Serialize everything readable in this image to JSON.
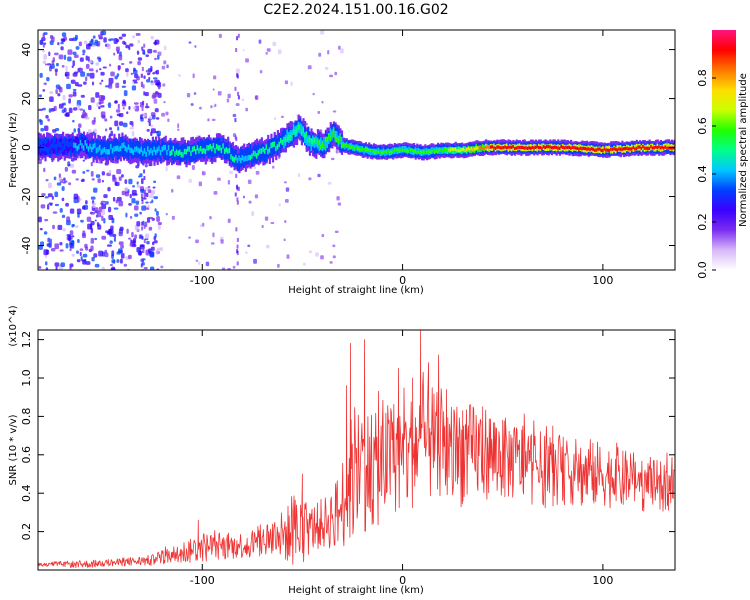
{
  "figure_title": "C2E2.2024.151.00.16.G02",
  "colors": {
    "snr_line": "#ee3333",
    "axis": "#000000",
    "background": "#ffffff"
  },
  "chart_data": [
    {
      "type": "heatmap",
      "xlabel": "Height of straight line (km)",
      "ylabel": "Frequency (Hz)",
      "xlim": [
        -182,
        136
      ],
      "ylim": [
        -50,
        48
      ],
      "x_ticks": [
        -100,
        0,
        100
      ],
      "x_tick_labels": [
        "-100",
        "0",
        "100"
      ],
      "y_ticks": [
        -40,
        -20,
        0,
        20,
        40
      ],
      "y_tick_labels": [
        "-40",
        "-20",
        "0",
        "20",
        "40"
      ],
      "colorbar": {
        "label": "Normalized spectral amplitude",
        "range": [
          0,
          1
        ],
        "ticks": [
          0.0,
          0.2,
          0.4,
          0.6,
          0.8
        ],
        "tick_labels": [
          "0.0",
          "0.2",
          "0.4",
          "0.6",
          "0.8"
        ],
        "colormap": [
          "#ffffff",
          "#d8b8f8",
          "#7a2cf0",
          "#3a00ff",
          "#0040ff",
          "#00c8ff",
          "#00ff88",
          "#22ff00",
          "#ccff00",
          "#ffdd00",
          "#ff7700",
          "#ff0000",
          "#ff1480"
        ]
      },
      "ridge_center_hz": [
        [
          -180,
          0
        ],
        [
          -170,
          0.5
        ],
        [
          -160,
          1
        ],
        [
          -150,
          -1
        ],
        [
          -140,
          0
        ],
        [
          -130,
          -2
        ],
        [
          -120,
          -1
        ],
        [
          -110,
          -2
        ],
        [
          -100,
          -1
        ],
        [
          -90,
          0
        ],
        [
          -83,
          -5
        ],
        [
          -75,
          -3
        ],
        [
          -65,
          0
        ],
        [
          -58,
          4
        ],
        [
          -52,
          8
        ],
        [
          -46,
          2
        ],
        [
          -40,
          1
        ],
        [
          -35,
          6
        ],
        [
          -30,
          1
        ],
        [
          -20,
          -1
        ],
        [
          -10,
          -2
        ],
        [
          0,
          -1
        ],
        [
          10,
          -2
        ],
        [
          20,
          -1
        ],
        [
          30,
          -1
        ],
        [
          40,
          0
        ],
        [
          60,
          0
        ],
        [
          80,
          0
        ],
        [
          100,
          -1
        ],
        [
          120,
          0
        ],
        [
          136,
          0
        ]
      ],
      "ridge_peak_amplitude": [
        [
          -180,
          0.35
        ],
        [
          -150,
          0.4
        ],
        [
          -120,
          0.45
        ],
        [
          -100,
          0.5
        ],
        [
          -80,
          0.45
        ],
        [
          -60,
          0.5
        ],
        [
          -40,
          0.55
        ],
        [
          -30,
          0.6
        ],
        [
          -20,
          0.55
        ],
        [
          0,
          0.55
        ],
        [
          20,
          0.6
        ],
        [
          35,
          0.75
        ],
        [
          45,
          0.9
        ],
        [
          60,
          0.92
        ],
        [
          80,
          0.9
        ],
        [
          100,
          0.92
        ],
        [
          120,
          0.9
        ],
        [
          136,
          0.88
        ]
      ]
    },
    {
      "type": "line",
      "xlabel": "Height of straight line (km)",
      "ylabel": "SNR (10 * v/v)",
      "y_multiplier": "(x10^4)",
      "xlim": [
        -182,
        136
      ],
      "ylim": [
        0,
        1.25
      ],
      "x_ticks": [
        -100,
        0,
        100
      ],
      "x_tick_labels": [
        "-100",
        "0",
        "100"
      ],
      "y_ticks": [
        0.2,
        0.4,
        0.6,
        0.8,
        1.0,
        1.2
      ],
      "y_tick_labels": [
        "0.2",
        "0.4",
        "0.6",
        "0.8",
        "1.0",
        "1.2"
      ],
      "series": [
        {
          "color": "#ee3333",
          "envelope_x": [
            -182,
            -160,
            -140,
            -125,
            -110,
            -100,
            -90,
            -80,
            -70,
            -60,
            -52,
            -45,
            -38,
            -32,
            -25,
            -20,
            -15,
            -10,
            -5,
            0,
            5,
            10,
            15,
            20,
            30,
            40,
            50,
            60,
            70,
            80,
            90,
            100,
            110,
            120,
            130,
            136
          ],
          "envelope_mean": [
            0.03,
            0.03,
            0.04,
            0.05,
            0.09,
            0.12,
            0.12,
            0.13,
            0.15,
            0.18,
            0.2,
            0.22,
            0.25,
            0.3,
            0.48,
            0.55,
            0.5,
            0.55,
            0.6,
            0.58,
            0.62,
            0.68,
            0.65,
            0.6,
            0.6,
            0.62,
            0.58,
            0.56,
            0.52,
            0.52,
            0.5,
            0.5,
            0.47,
            0.45,
            0.43,
            0.44
          ],
          "envelope_spread": [
            0.01,
            0.02,
            0.02,
            0.03,
            0.06,
            0.08,
            0.07,
            0.07,
            0.09,
            0.13,
            0.2,
            0.12,
            0.14,
            0.2,
            0.35,
            0.35,
            0.3,
            0.3,
            0.3,
            0.3,
            0.3,
            0.3,
            0.3,
            0.3,
            0.27,
            0.25,
            0.22,
            0.2,
            0.2,
            0.18,
            0.18,
            0.17,
            0.16,
            0.15,
            0.13,
            0.12
          ],
          "peaks": [
            [
              -102,
              0.26
            ],
            [
              -50,
              0.5
            ],
            [
              -28,
              0.96
            ],
            [
              -26,
              1.18
            ],
            [
              -19,
              1.2
            ],
            [
              -12,
              0.93
            ],
            [
              -2,
              1.05
            ],
            [
              5,
              1.0
            ],
            [
              9,
              1.25
            ],
            [
              13,
              1.08
            ],
            [
              18,
              1.12
            ],
            [
              22,
              0.94
            ],
            [
              30,
              0.83
            ],
            [
              40,
              0.85
            ],
            [
              50,
              0.78
            ],
            [
              60,
              0.75
            ],
            [
              75,
              0.75
            ],
            [
              95,
              0.66
            ],
            [
              110,
              0.62
            ],
            [
              132,
              0.61
            ]
          ]
        }
      ]
    }
  ]
}
